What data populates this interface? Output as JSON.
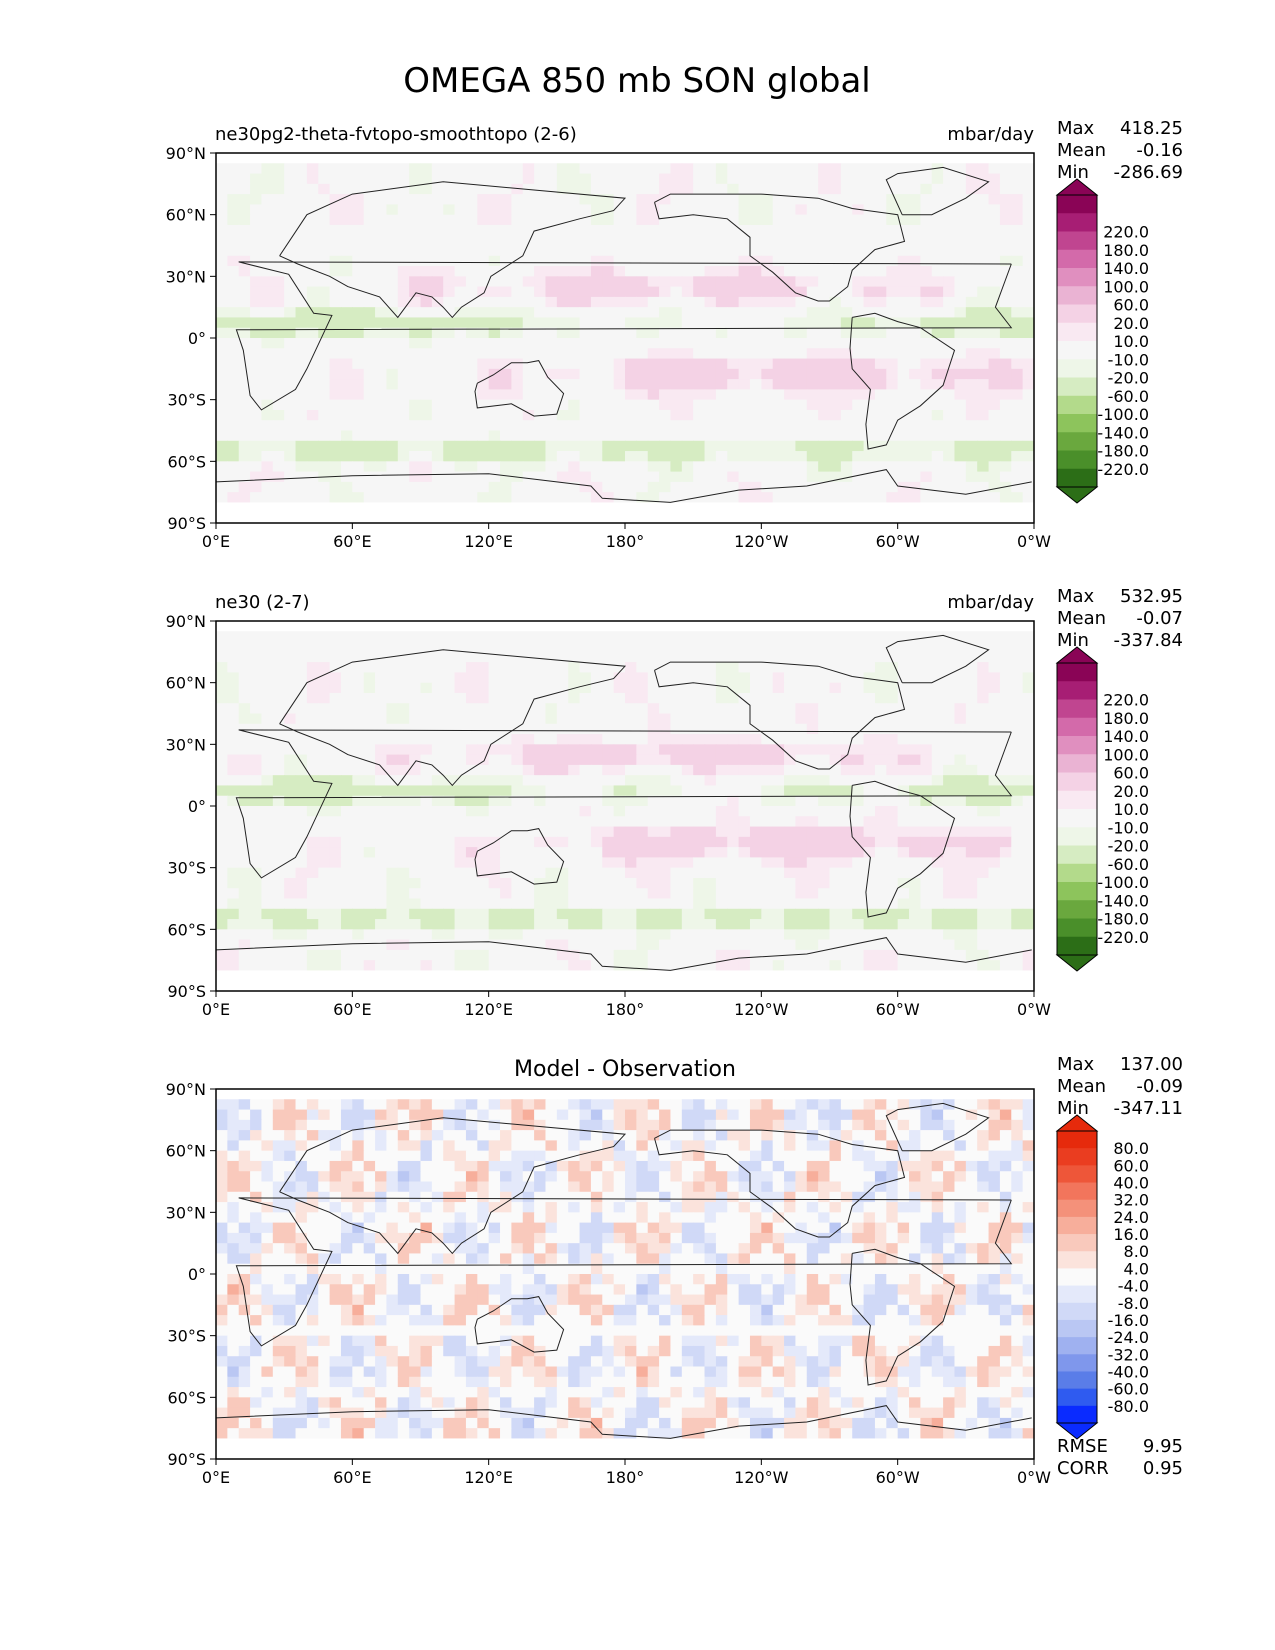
{
  "figure_title": "OMEGA 850 mb SON global",
  "colors": {
    "omega_scale": [
      "#2c6e17",
      "#4a8f2a",
      "#6aa83e",
      "#8dc45c",
      "#b3da8b",
      "#d6ecc2",
      "#eef6e8",
      "#f6f6f6",
      "#f9e9f2",
      "#f4d2e5",
      "#eab3d3",
      "#e08fbf",
      "#d36aaa",
      "#c04590",
      "#a71e74",
      "#8a0456"
    ],
    "diff_scale": [
      "#0a2bff",
      "#2f5bf0",
      "#5a7de8",
      "#7f97ec",
      "#9fb1f0",
      "#bac7f3",
      "#d0d9f7",
      "#e4e9fa",
      "#fafafa",
      "#fbe3dc",
      "#f9c9bc",
      "#f7ae9b",
      "#f4917a",
      "#f2755c",
      "#ee5639",
      "#ea3d20",
      "#e62a0c"
    ],
    "land_outline": "#222222",
    "no_data": "#ffffff"
  },
  "chart_data": [
    {
      "type": "heatmap",
      "title": "ne30pg2-theta-fvtopo-smoothtopo (2-6)",
      "units": "mbar/day",
      "stats": {
        "max_label": "Max",
        "max": "418.25",
        "mean_label": "Mean",
        "mean": "-0.16",
        "min_label": "Min",
        "min": "-286.69"
      },
      "x_ticks": [
        "0°E",
        "60°E",
        "120°E",
        "180°",
        "120°W",
        "60°W",
        "0°W"
      ],
      "y_ticks": [
        "90°N",
        "60°N",
        "30°N",
        "0°",
        "30°S",
        "60°S",
        "90°S"
      ],
      "colorbar_levels": [
        "-220.0",
        "-180.0",
        "-140.0",
        "-100.0",
        "-60.0",
        "-20.0",
        "-10.0",
        "10.0",
        "20.0",
        "60.0",
        "100.0",
        "140.0",
        "180.0",
        "220.0"
      ],
      "xlim": [
        0,
        360
      ],
      "ylim": [
        -90,
        90
      ]
    },
    {
      "type": "heatmap",
      "title": "ne30 (2-7)",
      "units": "mbar/day",
      "stats": {
        "max_label": "Max",
        "max": "532.95",
        "mean_label": "Mean",
        "mean": "-0.07",
        "min_label": "Min",
        "min": "-337.84"
      },
      "x_ticks": [
        "0°E",
        "60°E",
        "120°E",
        "180°",
        "120°W",
        "60°W",
        "0°W"
      ],
      "y_ticks": [
        "90°N",
        "60°N",
        "30°N",
        "0°",
        "30°S",
        "60°S",
        "90°S"
      ],
      "colorbar_levels": [
        "-220.0",
        "-180.0",
        "-140.0",
        "-100.0",
        "-60.0",
        "-20.0",
        "-10.0",
        "10.0",
        "20.0",
        "60.0",
        "100.0",
        "140.0",
        "180.0",
        "220.0"
      ],
      "xlim": [
        0,
        360
      ],
      "ylim": [
        -90,
        90
      ]
    },
    {
      "type": "heatmap",
      "title": "Model - Observation",
      "units": "",
      "stats": {
        "max_label": "Max",
        "max": "137.00",
        "mean_label": "Mean",
        "mean": "-0.09",
        "min_label": "Min",
        "min": "-347.11"
      },
      "rmse_label": "RMSE",
      "rmse": "9.95",
      "corr_label": "CORR",
      "corr": "0.95",
      "x_ticks": [
        "0°E",
        "60°E",
        "120°E",
        "180°",
        "120°W",
        "60°W",
        "0°W"
      ],
      "y_ticks": [
        "90°N",
        "60°N",
        "30°N",
        "0°",
        "30°S",
        "60°S",
        "90°S"
      ],
      "colorbar_levels": [
        "-80.0",
        "-60.0",
        "-40.0",
        "-32.0",
        "-24.0",
        "-16.0",
        "-8.0",
        "-4.0",
        "4.0",
        "8.0",
        "16.0",
        "24.0",
        "32.0",
        "40.0",
        "60.0",
        "80.0"
      ],
      "xlim": [
        0,
        360
      ],
      "ylim": [
        -90,
        90
      ]
    }
  ]
}
